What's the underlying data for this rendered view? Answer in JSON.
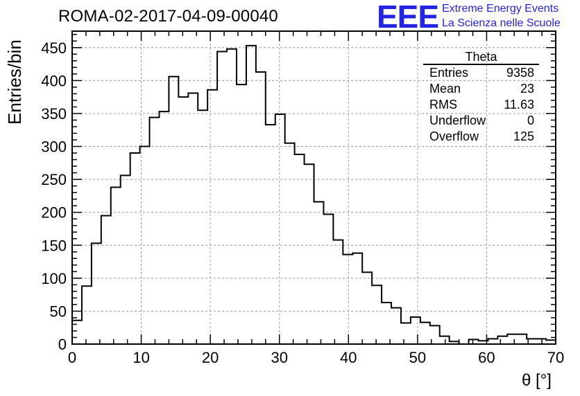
{
  "title": "ROMA-02-2017-04-09-00040",
  "logo": {
    "mark": "EEE",
    "line1": "Extreme Energy Events",
    "line2": "La Scienza nelle Scuole",
    "color": "#2323e6"
  },
  "stats": {
    "name": "Theta",
    "rows": [
      {
        "label": "Entries",
        "value": "9358"
      },
      {
        "label": "Mean",
        "value": "23"
      },
      {
        "label": "RMS",
        "value": "11.63"
      },
      {
        "label": "Underflow",
        "value": "0"
      },
      {
        "label": "Overflow",
        "value": "125"
      }
    ]
  },
  "chart_data": {
    "type": "histogram",
    "title": "ROMA-02-2017-04-09-00040",
    "xlabel": "θ [°]",
    "ylabel": "Entries/bin",
    "xlim": [
      0,
      70
    ],
    "ylim": [
      0,
      475
    ],
    "bin_width": 1.4,
    "x_ticks": [
      0,
      10,
      20,
      30,
      40,
      50,
      60,
      70
    ],
    "y_ticks": [
      0,
      50,
      100,
      150,
      200,
      250,
      300,
      350,
      400,
      450
    ],
    "grid": true,
    "line_color": "#000000",
    "values": [
      36,
      88,
      153,
      195,
      238,
      256,
      290,
      300,
      344,
      353,
      406,
      375,
      381,
      355,
      386,
      444,
      448,
      394,
      453,
      413,
      333,
      349,
      305,
      288,
      273,
      216,
      197,
      158,
      136,
      138,
      109,
      89,
      63,
      55,
      32,
      41,
      33,
      28,
      12,
      4,
      0,
      7,
      5,
      8,
      12,
      15,
      15,
      8,
      8,
      6
    ]
  }
}
